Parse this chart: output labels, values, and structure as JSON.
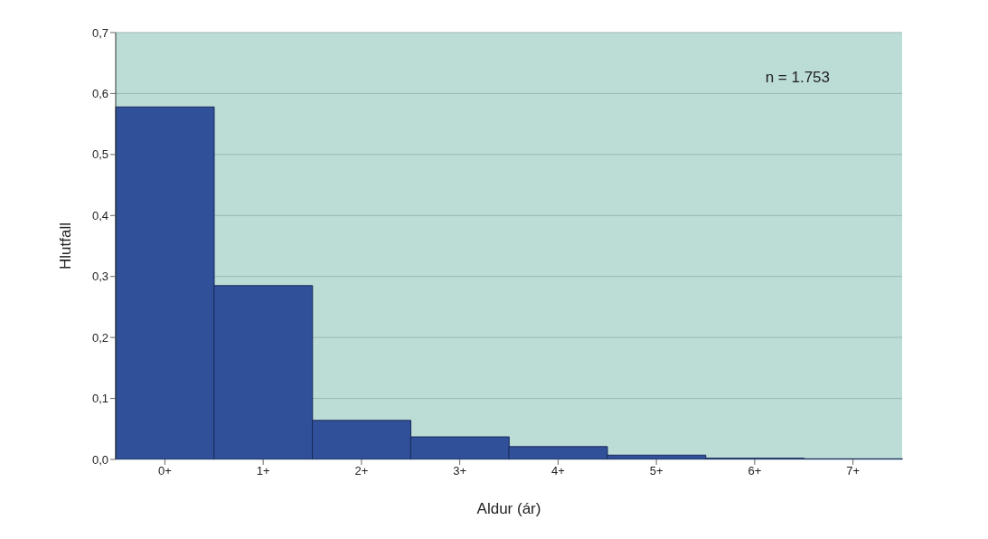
{
  "chart_data": {
    "type": "bar",
    "xlabel": "Aldur (ár)",
    "ylabel": "Hlutfall",
    "categories": [
      "0+",
      "1+",
      "2+",
      "3+",
      "4+",
      "5+",
      "6+",
      "7+"
    ],
    "values": [
      0.578,
      0.285,
      0.064,
      0.037,
      0.021,
      0.007,
      0.002,
      0.001
    ],
    "color": "#30509a",
    "ylim": [
      0,
      0.7
    ],
    "yticks": [
      {
        "value": 0,
        "label": "0,0"
      },
      {
        "value": 0.1,
        "label": "0,1"
      },
      {
        "value": 0.2,
        "label": "0,2"
      },
      {
        "value": 0.3,
        "label": "0,3"
      },
      {
        "value": 0.4,
        "label": "0,4"
      },
      {
        "value": 0.5,
        "label": "0,5"
      },
      {
        "value": 0.6,
        "label": "0,6"
      },
      {
        "value": 0.7,
        "label": "0,7"
      }
    ],
    "grid": "y",
    "annotations": [
      "n = 1.753"
    ]
  }
}
